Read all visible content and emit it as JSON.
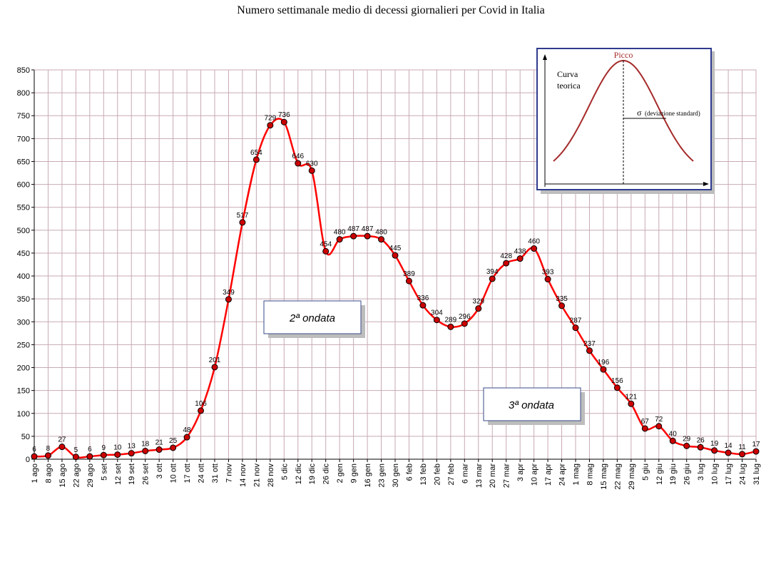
{
  "chart_data": {
    "type": "line",
    "title": "Numero settimanale medio di decessi giornalieri per Covid in Italia",
    "ylim": [
      0,
      850
    ],
    "yticks": [
      0,
      50,
      100,
      150,
      200,
      250,
      300,
      350,
      400,
      450,
      500,
      550,
      600,
      650,
      700,
      750,
      800,
      850
    ],
    "grid": true,
    "series_color": "#ff0000",
    "marker_color": "#cc0000",
    "categories": [
      "1 ago",
      "8 ago",
      "15 ago",
      "22 ago",
      "29 ago",
      "5 set",
      "12 set",
      "19 set",
      "26 set",
      "3 ott",
      "10 ott",
      "17 ott",
      "24 ott",
      "31 ott",
      "7 nov",
      "14 nov",
      "21 nov",
      "28 nov",
      "5 dic",
      "12 dic",
      "19 dic",
      "26 dic",
      "2 gen",
      "9 gen",
      "16 gen",
      "23 gen",
      "30 gen",
      "6 feb",
      "13 feb",
      "20 feb",
      "27 feb",
      "6 mar",
      "13 mar",
      "20 mar",
      "27 mar",
      "3 apr",
      "10 apr",
      "17 apr",
      "24 apr",
      "1 mag",
      "8 mag",
      "15 mag",
      "22 mag",
      "29 mag",
      "5 giu",
      "12 giu",
      "19 giu",
      "26 giu",
      "3 lug",
      "10 lug",
      "17 lug",
      "24 lug",
      "31 lug"
    ],
    "values": [
      6,
      8,
      27,
      5,
      6,
      9,
      10,
      13,
      18,
      21,
      25,
      48,
      106,
      201,
      349,
      517,
      654,
      729,
      736,
      646,
      630,
      454,
      480,
      487,
      487,
      480,
      445,
      389,
      336,
      304,
      289,
      296,
      329,
      394,
      428,
      438,
      460,
      393,
      335,
      287,
      237,
      196,
      156,
      121,
      67,
      72,
      40,
      29,
      26,
      19,
      14,
      11,
      17
    ],
    "annotations": [
      {
        "text": "2ª ondata"
      },
      {
        "text": "3ª ondata"
      }
    ]
  },
  "inset": {
    "label_line1": "Curva",
    "label_line2": "teorica",
    "peak_label": "Picco",
    "sigma_symbol": "σ",
    "sigma_text": "(deviazione standard)",
    "curve_color": "#a52a2a",
    "border_color": "#2f3b8f"
  }
}
